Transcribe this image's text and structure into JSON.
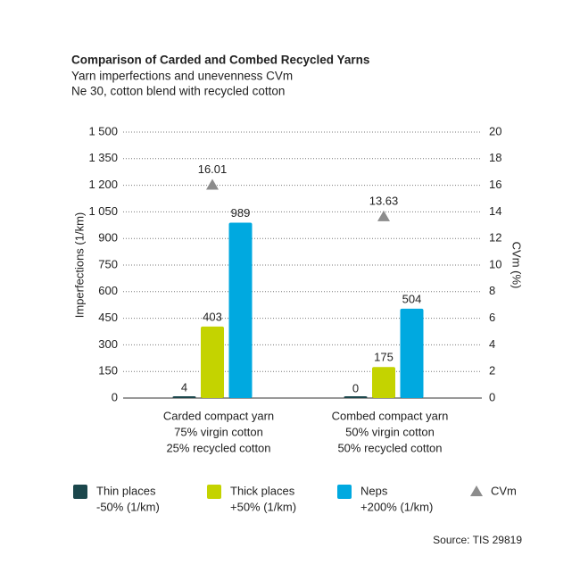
{
  "chart_data": {
    "type": "bar",
    "title": "Comparison of Carded and Combed Recycled Yarns",
    "subtitle": [
      "Yarn imperfections and unevenness CVm",
      "Ne 30, cotton blend with recycled cotton"
    ],
    "ylabel": "Imperfections (1/km)",
    "y2label": "CVm (%)",
    "categories": [
      [
        "Carded compact yarn",
        "75% virgin cotton",
        "25% recycled cotton"
      ],
      [
        "Combed compact yarn",
        "50% virgin cotton",
        "50% recycled cotton"
      ]
    ],
    "series": [
      {
        "name": [
          "Thin places",
          "-50% (1/km)"
        ],
        "color": "#1b474c",
        "values": [
          4,
          0
        ]
      },
      {
        "name": [
          "Thick places",
          "+50% (1/km)"
        ],
        "color": "#c4d300",
        "values": [
          403,
          175
        ]
      },
      {
        "name": [
          "Neps",
          "+200% (1/km)"
        ],
        "color": "#00a9e0",
        "values": [
          989,
          504
        ]
      },
      {
        "name": [
          "CVm"
        ],
        "color": "#8c8c8c",
        "values": [
          16.01,
          13.63
        ],
        "axis": "y2",
        "marker": "triangle"
      }
    ],
    "ylim": [
      0,
      1500
    ],
    "yticks": [
      0,
      150,
      300,
      450,
      600,
      750,
      900,
      {
        "value": 1050,
        "label": "1 050"
      },
      {
        "value": 1200,
        "label": "1 200"
      },
      {
        "value": 1350,
        "label": "1 350"
      },
      {
        "value": 1500,
        "label": "1 500"
      }
    ],
    "y2lim": [
      0,
      20
    ],
    "y2ticks": [
      0,
      2,
      4,
      6,
      8,
      10,
      12,
      14,
      16,
      18,
      20
    ],
    "grid": true,
    "legend": "bottom",
    "source": "Source: TIS 29819"
  }
}
